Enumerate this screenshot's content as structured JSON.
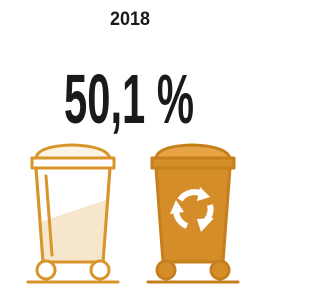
{
  "year": "2018",
  "stat": "50,1 %"
}
